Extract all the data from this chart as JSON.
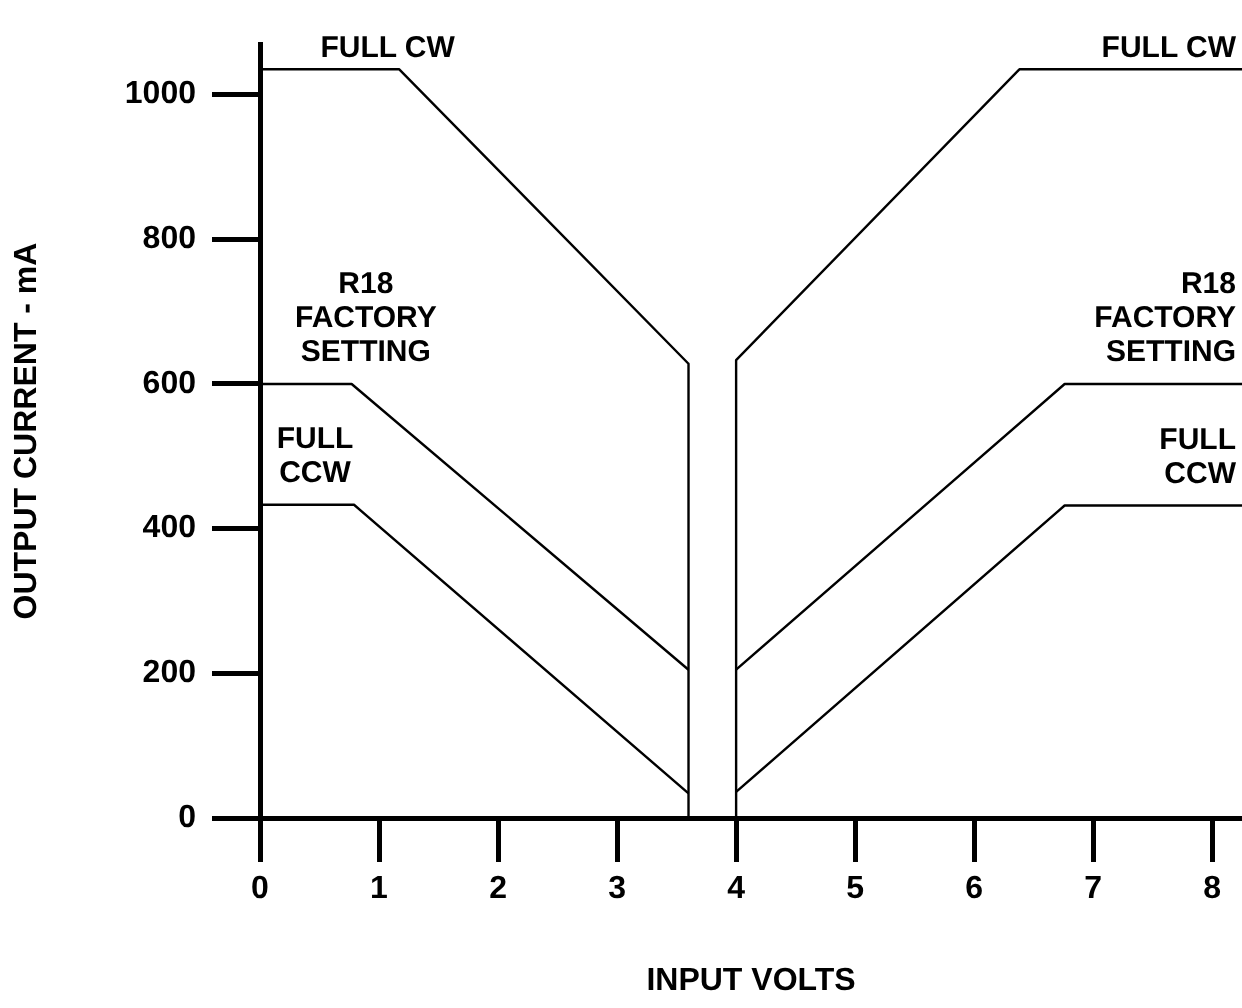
{
  "chart_data": {
    "type": "line",
    "xlabel": "INPUT VOLTS",
    "ylabel": "OUTPUT CURRENT - mA",
    "xlim": [
      0,
      8.25
    ],
    "ylim": [
      0,
      1070
    ],
    "xticks": [
      0,
      1,
      2,
      3,
      4,
      5,
      6,
      7,
      8
    ],
    "yticks": [
      0,
      200,
      400,
      600,
      800,
      1000
    ],
    "grid": false,
    "legend": false,
    "marker": "none",
    "line_style": "solid",
    "series": [
      {
        "name": "FULL CW",
        "color": "#000000",
        "x": [
          0,
          1.17,
          3.6,
          3.6
        ],
        "values": [
          1035,
          1035,
          628,
          0
        ]
      },
      {
        "name": "R18\nFACTORY\nSETTING",
        "color": "#000000",
        "x": [
          0,
          0.77,
          3.6
        ],
        "values": [
          600,
          600,
          205
        ]
      },
      {
        "name": "FULL\nCCW",
        "color": "#000000",
        "x": [
          0,
          0.79,
          3.6
        ],
        "values": [
          433,
          433,
          34
        ]
      },
      {
        "name": "FULL CW",
        "color": "#000000",
        "x": [
          4,
          4,
          6.38,
          8.25
        ],
        "values": [
          0,
          633,
          1035,
          1035
        ]
      },
      {
        "name": "R18\nFACTORY\nSETTING",
        "color": "#000000",
        "x": [
          4,
          6.76,
          8.25
        ],
        "values": [
          205,
          600,
          600
        ]
      },
      {
        "name": "FULL\nCCW",
        "color": "#000000",
        "x": [
          4,
          6.76,
          8.25
        ],
        "values": [
          36,
          432,
          432
        ]
      }
    ]
  }
}
